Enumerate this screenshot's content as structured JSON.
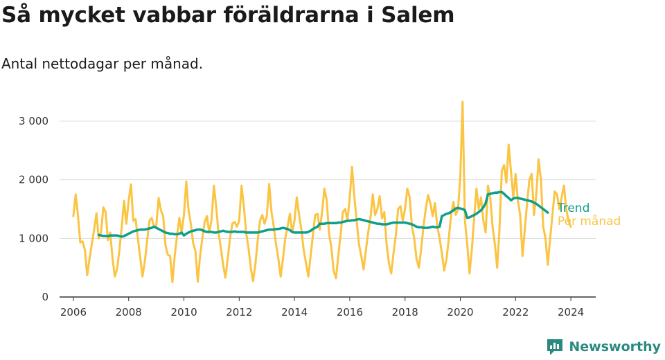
{
  "header": {
    "title": "Så mycket vabbar föräldrarna i Salem",
    "subtitle": "Antal nettodagar per månad."
  },
  "branding": {
    "name": "Newsworthy",
    "icon": "bar-chart-speech-bubble-icon",
    "color": "#2a8a7e"
  },
  "colors": {
    "trend": "#0f9e8c",
    "monthly": "#fbc443",
    "grid": "#dddddd",
    "axis": "#333333"
  },
  "chart_data": {
    "type": "line",
    "title": "Så mycket vabbar föräldrarna i Salem",
    "subtitle": "Antal nettodagar per månad.",
    "xlabel": "",
    "ylabel": "",
    "xlim": [
      2005.5,
      2024.9
    ],
    "ylim": [
      0,
      3000
    ],
    "x_ticks": [
      2006,
      2008,
      2010,
      2012,
      2014,
      2016,
      2018,
      2020,
      2022,
      2024
    ],
    "x_tick_labels": [
      "2006",
      "2008",
      "2010",
      "2012",
      "2014",
      "2016",
      "2018",
      "2020",
      "2022",
      "2024"
    ],
    "y_ticks": [
      0,
      1000,
      2000,
      3000
    ],
    "y_tick_labels": [
      "0",
      "1 000",
      "2 000",
      "3 000"
    ],
    "grid": "horizontal",
    "legend": "right end of lines",
    "x_start": 2006.0,
    "x_step_months": 1,
    "series": [
      {
        "name": "Per månad",
        "color": "#fbc443",
        "start": 2006.0,
        "values": [
          1380,
          1750,
          1380,
          930,
          950,
          800,
          370,
          650,
          900,
          1150,
          1430,
          1000,
          1100,
          1530,
          1450,
          970,
          1100,
          650,
          350,
          480,
          800,
          1200,
          1640,
          1250,
          1640,
          1920,
          1300,
          1330,
          1000,
          680,
          350,
          600,
          950,
          1300,
          1350,
          1200,
          1220,
          1690,
          1480,
          1380,
          880,
          720,
          700,
          250,
          700,
          1050,
          1350,
          1100,
          1400,
          1970,
          1480,
          1250,
          920,
          780,
          260,
          700,
          1000,
          1280,
          1380,
          1100,
          1320,
          1900,
          1540,
          1100,
          850,
          550,
          330,
          650,
          1000,
          1250,
          1280,
          1200,
          1300,
          1900,
          1550,
          1100,
          850,
          500,
          270,
          550,
          950,
          1300,
          1400,
          1250,
          1380,
          1930,
          1450,
          1200,
          900,
          650,
          350,
          650,
          1000,
          1200,
          1420,
          1100,
          1300,
          1700,
          1400,
          1150,
          800,
          580,
          350,
          700,
          1050,
          1400,
          1420,
          1150,
          1450,
          1850,
          1650,
          1080,
          850,
          450,
          320,
          700,
          1050,
          1450,
          1500,
          1300,
          1700,
          2220,
          1700,
          1300,
          900,
          700,
          470,
          800,
          1100,
          1350,
          1750,
          1400,
          1500,
          1720,
          1340,
          1450,
          900,
          580,
          400,
          750,
          1050,
          1500,
          1550,
          1300,
          1500,
          1850,
          1700,
          1200,
          1000,
          650,
          500,
          820,
          1200,
          1500,
          1740,
          1600,
          1380,
          1600,
          1200,
          1000,
          750,
          450,
          650,
          1000,
          1400,
          1620,
          1400,
          1500,
          2050,
          3330,
          1300,
          900,
          400,
          800,
          1350,
          1850,
          1500,
          1700,
          1300,
          1100,
          1900,
          1700,
          1200,
          900,
          500,
          1150,
          2150,
          2250,
          1950,
          2600,
          2150,
          1700,
          2100,
          1650,
          1400,
          700,
          1150,
          1600,
          2000,
          2100,
          1400,
          1750,
          2350,
          2000,
          1200,
          1000,
          550,
          1000,
          1400,
          1800,
          1750,
          1500,
          1700,
          1900,
          1500,
          1300,
          1200
        ]
      },
      {
        "name": "Trend",
        "color": "#0f9e8c",
        "start": 2006.9167,
        "values": [
          1060,
          1050,
          1040,
          1040,
          1040,
          1050,
          1050,
          1050,
          1050,
          1040,
          1030,
          1040,
          1060,
          1080,
          1100,
          1120,
          1130,
          1140,
          1150,
          1150,
          1150,
          1160,
          1170,
          1180,
          1200,
          1180,
          1160,
          1140,
          1120,
          1100,
          1090,
          1080,
          1080,
          1070,
          1070,
          1080,
          1100,
          1050,
          1080,
          1100,
          1120,
          1130,
          1140,
          1150,
          1150,
          1140,
          1120,
          1110,
          1110,
          1110,
          1100,
          1100,
          1110,
          1120,
          1130,
          1120,
          1110,
          1110,
          1110,
          1120,
          1110,
          1110,
          1110,
          1110,
          1100,
          1100,
          1100,
          1100,
          1100,
          1100,
          1110,
          1120,
          1130,
          1140,
          1150,
          1150,
          1150,
          1160,
          1160,
          1170,
          1180,
          1170,
          1160,
          1140,
          1110,
          1100,
          1100,
          1100,
          1100,
          1100,
          1100,
          1110,
          1130,
          1160,
          1180,
          1200,
          1250,
          1250,
          1250,
          1260,
          1260,
          1260,
          1260,
          1260,
          1270,
          1270,
          1280,
          1290,
          1300,
          1300,
          1310,
          1310,
          1320,
          1330,
          1320,
          1310,
          1300,
          1290,
          1280,
          1270,
          1260,
          1250,
          1250,
          1240,
          1240,
          1240,
          1250,
          1260,
          1270,
          1270,
          1270,
          1270,
          1270,
          1270,
          1260,
          1250,
          1240,
          1220,
          1200,
          1190,
          1190,
          1180,
          1180,
          1180,
          1190,
          1200,
          1190,
          1190,
          1200,
          1380,
          1400,
          1420,
          1430,
          1450,
          1480,
          1510,
          1520,
          1510,
          1500,
          1480,
          1350,
          1360,
          1380,
          1400,
          1420,
          1450,
          1480,
          1530,
          1600,
          1750,
          1760,
          1770,
          1780,
          1780,
          1790,
          1790,
          1760,
          1720,
          1690,
          1650,
          1680,
          1690,
          1690,
          1680,
          1670,
          1660,
          1650,
          1640,
          1630,
          1610,
          1590,
          1560,
          1530,
          1500,
          1470,
          1440
        ]
      }
    ]
  }
}
